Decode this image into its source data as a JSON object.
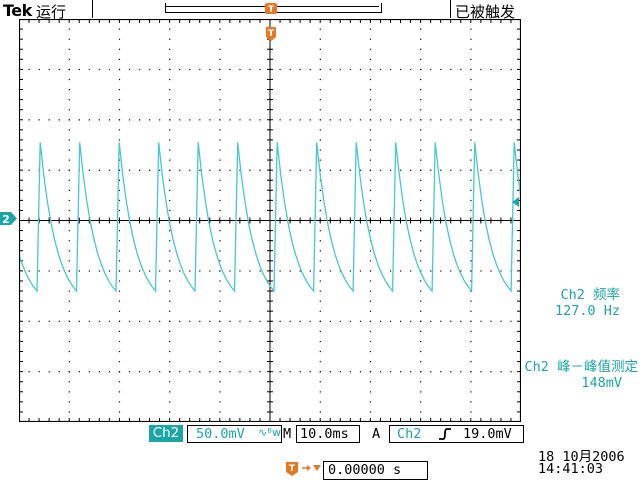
{
  "header": {
    "brand": "Tek",
    "mode": "运行",
    "trigger_state": "已被触发",
    "trigger_marker": "T"
  },
  "channel_marker": "2",
  "measurements": [
    {
      "label": "Ch2 频率",
      "value": "127.0 Hz"
    },
    {
      "label": "Ch2 峰－峰值测定",
      "value": "148mV"
    }
  ],
  "status": {
    "channel": "Ch2",
    "volts_per_div": "50.0mV",
    "bandwidth_mark": "∿ᴮw",
    "time_label": "M",
    "time_per_div": "10.0ms",
    "trigger_label": "A",
    "trigger_source": "Ch2",
    "trigger_level": "19.0mV",
    "horizontal_position": "0.00000 s",
    "date": "18 10月2006",
    "time": "14:41:03"
  },
  "waveform": {
    "channel": "Ch2",
    "period_divs": 0.787,
    "amp_peak_divs": 1.55,
    "amp_trough_divs": -1.4,
    "rise_fraction": 0.08
  },
  "colors": {
    "trace": "#45c8d0",
    "channel": "#1aa6a6",
    "trigger": "#e87722"
  }
}
